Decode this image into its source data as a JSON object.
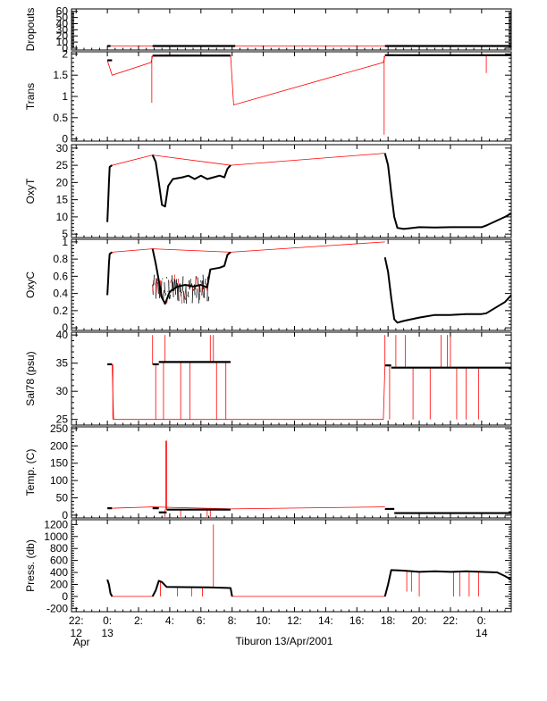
{
  "chart_data": {
    "type": "line",
    "figure_caption": "Tiburon 13/Apr/2001",
    "x_unit": "hours since 13/Apr/2001 00:00",
    "xlim": [
      -2.3,
      25.9
    ],
    "x_ticks": [
      {
        "v": -2,
        "top": "22:",
        "bottom": "12"
      },
      {
        "v": 0,
        "top": "0:",
        "bottom": "13"
      },
      {
        "v": 2,
        "top": "2:",
        "bottom": ""
      },
      {
        "v": 4,
        "top": "4:",
        "bottom": ""
      },
      {
        "v": 6,
        "top": "6:",
        "bottom": ""
      },
      {
        "v": 8,
        "top": "8:",
        "bottom": ""
      },
      {
        "v": 10,
        "top": "10:",
        "bottom": ""
      },
      {
        "v": 12,
        "top": "12:",
        "bottom": ""
      },
      {
        "v": 14,
        "top": "14:",
        "bottom": ""
      },
      {
        "v": 16,
        "top": "16:",
        "bottom": ""
      },
      {
        "v": 18,
        "top": "18:",
        "bottom": ""
      },
      {
        "v": 20,
        "top": "20:",
        "bottom": ""
      },
      {
        "v": 22,
        "top": "22:",
        "bottom": ""
      },
      {
        "v": 24,
        "top": "0:",
        "bottom": "14"
      }
    ],
    "x_tick_extra": {
      "v": -2,
      "text": "Apr"
    },
    "colors": {
      "data": "#000000",
      "interp": "#ff0000",
      "axis": "#000000"
    },
    "panels": [
      {
        "ylabel": "Dropouts",
        "ylim": [
          -3,
          64
        ],
        "yticks": [
          0,
          10,
          20,
          30,
          40,
          50,
          60
        ],
        "segments": [
          [
            0.0,
            0.2,
            3.5
          ],
          [
            2.9,
            8.2,
            3.5
          ],
          [
            17.8,
            25.9,
            3.5
          ]
        ],
        "red_lines": [
          [
            [
              0.0,
              3.5
            ],
            [
              2.9,
              3.5
            ],
            [
              8.2,
              3.5
            ],
            [
              17.8,
              3.5
            ]
          ]
        ],
        "spikes": []
      },
      {
        "ylabel": "Trans",
        "ylim": [
          -0.05,
          2.05
        ],
        "yticks": [
          0.0,
          0.5,
          1.0,
          1.5,
          2.0
        ],
        "segments": [
          [
            0.0,
            0.3,
            1.85
          ],
          [
            2.9,
            3.3,
            1.96
          ],
          [
            3.3,
            7.9,
            1.96
          ],
          [
            17.8,
            18.5,
            1.97
          ],
          [
            18.5,
            25.9,
            1.97
          ]
        ],
        "red_lines": [
          [
            [
              0.0,
              1.85
            ],
            [
              0.3,
              1.5
            ],
            [
              2.8,
              1.8
            ],
            [
              2.9,
              1.95
            ],
            [
              7.9,
              1.96
            ],
            [
              8.1,
              0.8
            ],
            [
              17.7,
              1.8
            ],
            [
              17.8,
              1.95
            ]
          ]
        ],
        "spikes": [
          [
            2.85,
            1.95,
            0.85
          ],
          [
            17.75,
            1.95,
            0.1
          ],
          [
            24.3,
            1.97,
            1.55
          ]
        ]
      },
      {
        "ylabel": "OxyT",
        "ylim": [
          4,
          31
        ],
        "yticks": [
          5,
          10,
          15,
          20,
          25,
          30
        ],
        "curves": [
          [
            [
              0.0,
              8.5
            ],
            [
              0.05,
              14
            ],
            [
              0.1,
              20
            ],
            [
              0.15,
              24.5
            ],
            [
              0.3,
              25
            ]
          ],
          [
            [
              2.9,
              28
            ],
            [
              3.1,
              26
            ],
            [
              3.3,
              20
            ],
            [
              3.5,
              13.5
            ],
            [
              3.7,
              13
            ],
            [
              3.9,
              19
            ],
            [
              4.2,
              21
            ],
            [
              4.8,
              21.5
            ],
            [
              5.2,
              22
            ],
            [
              5.6,
              21
            ],
            [
              6.0,
              22
            ],
            [
              6.4,
              21
            ],
            [
              6.8,
              21.5
            ],
            [
              7.2,
              22
            ],
            [
              7.5,
              21.5
            ],
            [
              7.7,
              24
            ],
            [
              7.9,
              25
            ]
          ],
          [
            [
              17.8,
              28.5
            ],
            [
              18.0,
              25
            ],
            [
              18.2,
              17
            ],
            [
              18.4,
              10
            ],
            [
              18.6,
              6.8
            ],
            [
              19.0,
              6.5
            ],
            [
              20.0,
              7
            ],
            [
              21.0,
              6.9
            ],
            [
              22.0,
              7
            ],
            [
              23.0,
              7
            ],
            [
              24.0,
              7
            ],
            [
              24.3,
              7.5
            ],
            [
              25.5,
              10
            ],
            [
              25.9,
              11
            ]
          ]
        ],
        "red_lines": [
          [
            [
              0.3,
              25
            ],
            [
              2.9,
              28
            ],
            [
              7.9,
              25
            ],
            [
              17.8,
              28.5
            ]
          ]
        ],
        "spikes": []
      },
      {
        "ylabel": "OxyC",
        "ylim": [
          -0.03,
          1.03
        ],
        "yticks": [
          0.0,
          0.2,
          0.4,
          0.6,
          0.8,
          1.0
        ],
        "curves": [
          [
            [
              0.0,
              0.38
            ],
            [
              0.05,
              0.55
            ],
            [
              0.1,
              0.75
            ],
            [
              0.15,
              0.86
            ],
            [
              0.3,
              0.88
            ]
          ],
          [
            [
              2.9,
              0.92
            ],
            [
              3.1,
              0.75
            ],
            [
              3.3,
              0.55
            ],
            [
              3.5,
              0.35
            ],
            [
              3.7,
              0.28
            ],
            [
              4.0,
              0.42
            ],
            [
              4.5,
              0.48
            ],
            [
              5.0,
              0.5
            ],
            [
              5.5,
              0.48
            ],
            [
              6.0,
              0.5
            ],
            [
              6.4,
              0.47
            ],
            [
              6.6,
              0.68
            ],
            [
              7.2,
              0.7
            ],
            [
              7.5,
              0.72
            ],
            [
              7.7,
              0.85
            ],
            [
              7.9,
              0.88
            ]
          ],
          [
            [
              17.8,
              0.82
            ],
            [
              18.0,
              0.65
            ],
            [
              18.2,
              0.35
            ],
            [
              18.4,
              0.1
            ],
            [
              18.6,
              0.06
            ],
            [
              19.0,
              0.08
            ],
            [
              20.0,
              0.12
            ],
            [
              21.0,
              0.15
            ],
            [
              22.0,
              0.15
            ],
            [
              23.0,
              0.16
            ],
            [
              24.0,
              0.16
            ],
            [
              24.3,
              0.17
            ],
            [
              25.5,
              0.3
            ],
            [
              25.9,
              0.38
            ]
          ]
        ],
        "noise": [
          [
            2.9,
            6.5,
            0.28,
            0.62
          ]
        ],
        "red_lines": [
          [
            [
              0.3,
              0.88
            ],
            [
              2.9,
              0.92
            ],
            [
              7.9,
              0.88
            ],
            [
              17.8,
              1.0
            ]
          ]
        ],
        "spikes": []
      },
      {
        "ylabel": "Sal78 (psu)",
        "ylim": [
          24,
          40.5
        ],
        "yticks": [
          25,
          30,
          35,
          40
        ],
        "segments": [
          [
            0.0,
            0.3,
            34.8
          ],
          [
            2.9,
            3.3,
            34.8
          ],
          [
            3.3,
            7.9,
            35.2
          ],
          [
            17.8,
            18.2,
            34.6
          ],
          [
            18.2,
            25.9,
            34.2
          ]
        ],
        "red_lines": [
          [
            [
              0.3,
              34.8
            ],
            [
              0.4,
              25
            ],
            [
              17.7,
              25
            ],
            [
              17.8,
              34.6
            ]
          ]
        ],
        "spikes": [
          [
            0.35,
            34.8,
            25
          ],
          [
            2.9,
            34.8,
            40
          ],
          [
            3.1,
            34.8,
            25
          ],
          [
            3.6,
            35.2,
            25
          ],
          [
            3.7,
            35.2,
            40
          ],
          [
            4.7,
            35.2,
            25
          ],
          [
            5.3,
            35.2,
            25
          ],
          [
            6.6,
            35.2,
            40
          ],
          [
            6.8,
            35.2,
            40
          ],
          [
            7.0,
            35.2,
            25
          ],
          [
            7.6,
            35.2,
            25
          ],
          [
            17.8,
            34.6,
            40
          ],
          [
            18.1,
            34.6,
            25
          ],
          [
            18.5,
            34.2,
            40
          ],
          [
            19.1,
            34.2,
            40
          ],
          [
            19.6,
            34.2,
            25
          ],
          [
            20.7,
            34.2,
            25
          ],
          [
            21.4,
            34.2,
            40
          ],
          [
            21.8,
            34.2,
            40
          ],
          [
            22.0,
            34.2,
            40
          ],
          [
            22.4,
            34.2,
            25
          ],
          [
            23.0,
            34.2,
            25
          ],
          [
            23.8,
            34.2,
            25
          ]
        ]
      },
      {
        "ylabel": "Temp. (C)",
        "ylim": [
          -8,
          255
        ],
        "yticks": [
          0,
          50,
          100,
          150,
          200,
          250
        ],
        "segments": [
          [
            0.0,
            0.3,
            20
          ],
          [
            2.9,
            3.3,
            20
          ],
          [
            3.3,
            3.8,
            8
          ],
          [
            3.8,
            7.9,
            16
          ],
          [
            17.8,
            18.4,
            18
          ],
          [
            18.4,
            25.9,
            6
          ]
        ],
        "red_lines": [
          [
            [
              0.3,
              20
            ],
            [
              2.9,
              24
            ],
            [
              7.9,
              18
            ],
            [
              17.8,
              24
            ]
          ]
        ],
        "spikes": [
          [
            3.75,
            16,
            215
          ],
          [
            3.8,
            16,
            215
          ],
          [
            3.7,
            16,
            -5
          ],
          [
            4.7,
            16,
            -5
          ],
          [
            6.4,
            16,
            -5
          ],
          [
            6.6,
            16,
            -5
          ]
        ]
      },
      {
        "ylabel": "Press. (db)",
        "ylim": [
          -255,
          1280
        ],
        "yticks": [
          -200,
          0,
          200,
          400,
          600,
          800,
          1000,
          1200
        ],
        "curves": [
          [
            [
              0.0,
              280
            ],
            [
              0.1,
              200
            ],
            [
              0.2,
              50
            ],
            [
              0.3,
              0
            ]
          ],
          [
            [
              2.9,
              0
            ],
            [
              3.1,
              100
            ],
            [
              3.3,
              260
            ],
            [
              3.5,
              240
            ],
            [
              3.8,
              160
            ],
            [
              5.0,
              155
            ],
            [
              6.5,
              150
            ],
            [
              7.9,
              140
            ],
            [
              8.0,
              0
            ]
          ],
          [
            [
              17.8,
              0
            ],
            [
              18.0,
              200
            ],
            [
              18.2,
              440
            ],
            [
              19.0,
              430
            ],
            [
              20.0,
              410
            ],
            [
              21.0,
              420
            ],
            [
              22.0,
              410
            ],
            [
              23.0,
              420
            ],
            [
              24.0,
              410
            ],
            [
              25.0,
              400
            ],
            [
              25.5,
              340
            ],
            [
              25.9,
              280
            ]
          ]
        ],
        "red_lines": [
          [
            [
              0.3,
              0
            ],
            [
              2.9,
              0
            ]
          ],
          [
            [
              8.0,
              0
            ],
            [
              17.8,
              0
            ]
          ]
        ],
        "spikes": [
          [
            3.4,
            240,
            0
          ],
          [
            4.5,
            160,
            0
          ],
          [
            5.4,
            155,
            0
          ],
          [
            6.1,
            150,
            0
          ],
          [
            6.8,
            150,
            1200
          ],
          [
            19.2,
            430,
            80
          ],
          [
            19.5,
            430,
            80
          ],
          [
            20.0,
            410,
            0
          ],
          [
            22.2,
            410,
            0
          ],
          [
            22.6,
            410,
            0
          ],
          [
            23.2,
            420,
            0
          ],
          [
            23.8,
            410,
            0
          ]
        ]
      }
    ]
  }
}
